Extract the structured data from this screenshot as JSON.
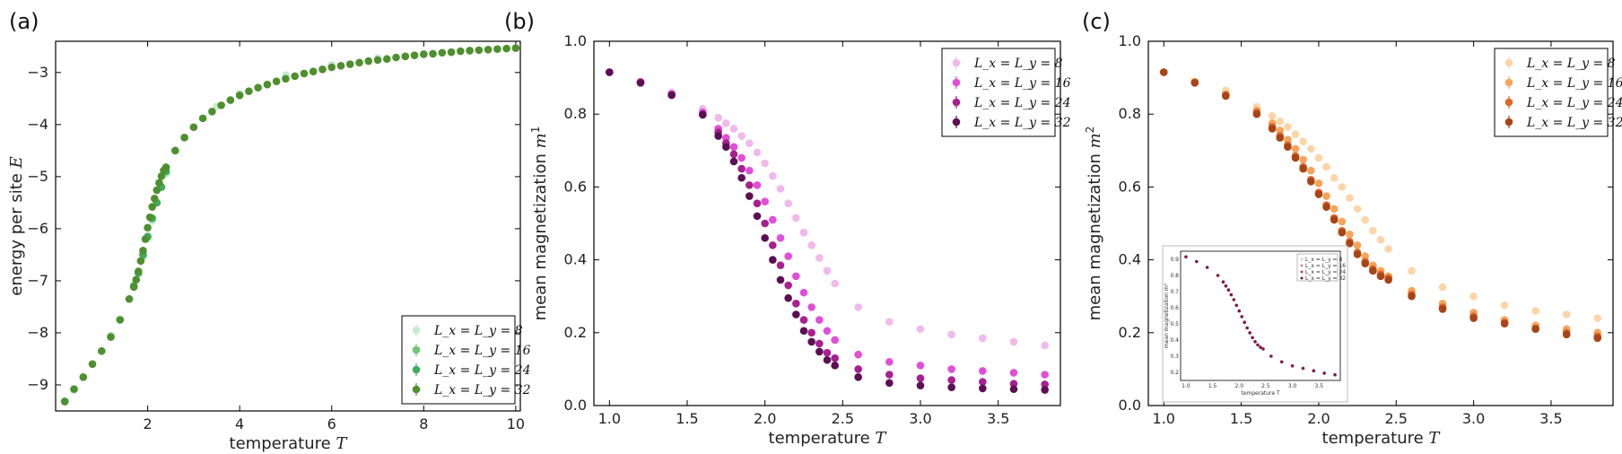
{
  "chart_data": [
    {
      "panel": "(a)",
      "type": "scatter",
      "xlabel": "temperature",
      "xlabel_var": "T",
      "ylabel": "energy per site",
      "ylabel_var": "E",
      "xlim": [
        0,
        10.1
      ],
      "ylim": [
        -9.5,
        -2.4
      ],
      "xticks": [
        2,
        4,
        6,
        8,
        10
      ],
      "yticks": [
        -9,
        -8,
        -7,
        -6,
        -5,
        -4,
        -3
      ],
      "grid": false,
      "legend_position": "bottom-right",
      "series": [
        {
          "name": "L_x = L_y = 8",
          "color": "#c7ebd0",
          "x": [
            0.2,
            0.4,
            0.6,
            0.8,
            1.0,
            1.2,
            1.4,
            1.6,
            1.7,
            1.8,
            1.9,
            2.0,
            2.1,
            2.2,
            2.3,
            2.4,
            2.6,
            2.8,
            3.0,
            3.5,
            4.0,
            5.0,
            6.0,
            7.0,
            8.0,
            9.0,
            10.0
          ],
          "y": [
            -9.3,
            -9.1,
            -8.85,
            -8.6,
            -8.35,
            -8.05,
            -7.75,
            -7.35,
            -7.1,
            -6.85,
            -6.55,
            -6.2,
            -5.85,
            -5.5,
            -5.2,
            -4.95,
            -4.5,
            -4.25,
            -4.05,
            -3.65,
            -3.4,
            -3.05,
            -2.85,
            -2.72,
            -2.64,
            -2.58,
            -2.53
          ]
        },
        {
          "name": "L_x = L_y = 16",
          "color": "#74c476",
          "x": [
            1.7,
            1.8,
            1.9,
            2.0,
            2.1,
            2.2,
            2.3,
            2.4
          ],
          "y": [
            -7.1,
            -6.85,
            -6.5,
            -6.15,
            -5.8,
            -5.5,
            -5.2,
            -4.9
          ]
        },
        {
          "name": "L_x = L_y = 24",
          "color": "#41ab5d",
          "x": [
            1.7,
            1.8,
            1.9,
            2.0,
            2.1,
            2.2,
            2.3,
            2.4
          ],
          "y": [
            -7.1,
            -6.85,
            -6.5,
            -6.15,
            -5.8,
            -5.5,
            -5.2,
            -4.9
          ]
        },
        {
          "name": "L_x = L_y = 32",
          "color": "#4e8f2e",
          "x": [
            0.2,
            0.4,
            0.6,
            0.8,
            1.0,
            1.2,
            1.4,
            1.6,
            1.7,
            1.75,
            1.8,
            1.85,
            1.9,
            1.95,
            2.0,
            2.05,
            2.1,
            2.15,
            2.2,
            2.25,
            2.3,
            2.35,
            2.4,
            2.6,
            2.8,
            3.0,
            3.2,
            3.4,
            3.6,
            3.8,
            4.0,
            4.2,
            4.4,
            4.6,
            4.8,
            5.0,
            5.2,
            5.4,
            5.6,
            5.8,
            6.0,
            6.2,
            6.4,
            6.6,
            6.8,
            7.0,
            7.2,
            7.4,
            7.6,
            7.8,
            8.0,
            8.2,
            8.4,
            8.6,
            8.8,
            9.0,
            9.2,
            9.4,
            9.6,
            9.8,
            10.0
          ],
          "y": [
            -9.32,
            -9.08,
            -8.85,
            -8.6,
            -8.35,
            -8.08,
            -7.75,
            -7.35,
            -7.12,
            -6.98,
            -6.82,
            -6.62,
            -6.42,
            -6.2,
            -5.98,
            -5.78,
            -5.58,
            -5.42,
            -5.26,
            -5.12,
            -4.99,
            -4.88,
            -4.82,
            -4.5,
            -4.25,
            -4.05,
            -3.88,
            -3.75,
            -3.63,
            -3.53,
            -3.44,
            -3.36,
            -3.29,
            -3.23,
            -3.17,
            -3.12,
            -3.07,
            -3.02,
            -2.98,
            -2.94,
            -2.9,
            -2.87,
            -2.84,
            -2.81,
            -2.78,
            -2.76,
            -2.74,
            -2.71,
            -2.69,
            -2.67,
            -2.65,
            -2.64,
            -2.62,
            -2.61,
            -2.59,
            -2.58,
            -2.57,
            -2.56,
            -2.55,
            -2.54,
            -2.53
          ]
        }
      ]
    },
    {
      "panel": "(b)",
      "type": "scatter",
      "xlabel": "temperature",
      "xlabel_var": "T",
      "ylabel": "mean magnetization",
      "ylabel_var": "m",
      "ylabel_sup": "1",
      "xlim": [
        0.9,
        3.9
      ],
      "ylim": [
        0.0,
        1.0
      ],
      "xticks": [
        1.0,
        1.5,
        2.0,
        2.5,
        3.0,
        3.5
      ],
      "yticks": [
        0.0,
        0.2,
        0.4,
        0.6,
        0.8,
        1.0
      ],
      "grid": false,
      "legend_position": "top-right",
      "series": [
        {
          "name": "L_x = L_y = 8",
          "color": "#f0b9ec",
          "x": [
            1.0,
            1.2,
            1.4,
            1.6,
            1.7,
            1.75,
            1.8,
            1.85,
            1.9,
            1.95,
            2.0,
            2.05,
            2.1,
            2.15,
            2.2,
            2.25,
            2.3,
            2.35,
            2.4,
            2.45,
            2.6,
            2.8,
            3.0,
            3.2,
            3.4,
            3.6,
            3.8
          ],
          "y": [
            0.915,
            0.89,
            0.86,
            0.815,
            0.79,
            0.775,
            0.76,
            0.74,
            0.72,
            0.695,
            0.665,
            0.63,
            0.595,
            0.555,
            0.515,
            0.475,
            0.44,
            0.405,
            0.37,
            0.335,
            0.27,
            0.23,
            0.21,
            0.195,
            0.185,
            0.175,
            0.165
          ]
        },
        {
          "name": "L_x = L_y = 16",
          "color": "#e04fd7",
          "x": [
            1.0,
            1.2,
            1.4,
            1.6,
            1.7,
            1.75,
            1.8,
            1.85,
            1.9,
            1.95,
            2.0,
            2.05,
            2.1,
            2.15,
            2.2,
            2.25,
            2.3,
            2.35,
            2.4,
            2.45,
            2.6,
            2.8,
            3.0,
            3.2,
            3.4,
            3.6,
            3.8
          ],
          "y": [
            0.915,
            0.888,
            0.855,
            0.805,
            0.76,
            0.735,
            0.71,
            0.68,
            0.645,
            0.605,
            0.56,
            0.51,
            0.46,
            0.41,
            0.355,
            0.31,
            0.27,
            0.235,
            0.205,
            0.18,
            0.14,
            0.12,
            0.11,
            0.1,
            0.095,
            0.09,
            0.085
          ]
        },
        {
          "name": "L_x = L_y = 24",
          "color": "#a8208f",
          "x": [
            1.0,
            1.2,
            1.4,
            1.6,
            1.7,
            1.75,
            1.8,
            1.85,
            1.9,
            1.95,
            2.0,
            2.05,
            2.1,
            2.15,
            2.2,
            2.25,
            2.3,
            2.35,
            2.4,
            2.45,
            2.6,
            2.8,
            3.0,
            3.2,
            3.4,
            3.6,
            3.8
          ],
          "y": [
            0.915,
            0.887,
            0.853,
            0.8,
            0.75,
            0.72,
            0.69,
            0.65,
            0.605,
            0.555,
            0.5,
            0.44,
            0.385,
            0.33,
            0.28,
            0.235,
            0.2,
            0.17,
            0.145,
            0.13,
            0.1,
            0.085,
            0.075,
            0.07,
            0.065,
            0.06,
            0.058
          ]
        },
        {
          "name": "L_x = L_y = 32",
          "color": "#5c0f55",
          "x": [
            1.0,
            1.2,
            1.4,
            1.6,
            1.7,
            1.75,
            1.8,
            1.85,
            1.9,
            1.95,
            2.0,
            2.05,
            2.1,
            2.15,
            2.2,
            2.25,
            2.3,
            2.35,
            2.4,
            2.45,
            2.6,
            2.8,
            3.0,
            3.2,
            3.4,
            3.6,
            3.8
          ],
          "y": [
            0.915,
            0.886,
            0.852,
            0.798,
            0.74,
            0.71,
            0.67,
            0.625,
            0.575,
            0.52,
            0.46,
            0.4,
            0.345,
            0.295,
            0.25,
            0.205,
            0.175,
            0.148,
            0.125,
            0.11,
            0.078,
            0.062,
            0.055,
            0.05,
            0.047,
            0.045,
            0.043
          ]
        }
      ]
    },
    {
      "panel": "(c)",
      "type": "scatter",
      "xlabel": "temperature",
      "xlabel_var": "T",
      "ylabel": "mean magnetization",
      "ylabel_var": "m",
      "ylabel_sup": "2",
      "xlim": [
        0.9,
        3.9
      ],
      "ylim": [
        0.0,
        1.0
      ],
      "xticks": [
        1.0,
        1.5,
        2.0,
        2.5,
        3.0,
        3.5
      ],
      "yticks": [
        0.0,
        0.2,
        0.4,
        0.6,
        0.8,
        1.0
      ],
      "grid": false,
      "legend_position": "top-right",
      "series": [
        {
          "name": "L_x = L_y = 8",
          "color": "#fbd5a8",
          "x": [
            1.0,
            1.2,
            1.4,
            1.6,
            1.7,
            1.75,
            1.8,
            1.85,
            1.9,
            1.95,
            2.0,
            2.05,
            2.1,
            2.15,
            2.2,
            2.25,
            2.3,
            2.35,
            2.4,
            2.45,
            2.6,
            2.8,
            3.0,
            3.2,
            3.4,
            3.6,
            3.8
          ],
          "y": [
            0.915,
            0.89,
            0.865,
            0.82,
            0.795,
            0.78,
            0.765,
            0.745,
            0.725,
            0.705,
            0.68,
            0.655,
            0.625,
            0.6,
            0.57,
            0.54,
            0.51,
            0.48,
            0.455,
            0.43,
            0.37,
            0.325,
            0.3,
            0.275,
            0.26,
            0.25,
            0.24
          ]
        },
        {
          "name": "L_x = L_y = 16",
          "color": "#f5a55b",
          "x": [
            1.0,
            1.2,
            1.4,
            1.6,
            1.7,
            1.75,
            1.8,
            1.85,
            1.9,
            1.95,
            2.0,
            2.05,
            2.1,
            2.15,
            2.2,
            2.25,
            2.3,
            2.35,
            2.4,
            2.45,
            2.6,
            2.8,
            3.0,
            3.2,
            3.4,
            3.6,
            3.8
          ],
          "y": [
            0.915,
            0.888,
            0.855,
            0.81,
            0.775,
            0.755,
            0.73,
            0.705,
            0.675,
            0.645,
            0.61,
            0.575,
            0.54,
            0.505,
            0.47,
            0.44,
            0.41,
            0.385,
            0.37,
            0.355,
            0.315,
            0.28,
            0.255,
            0.235,
            0.22,
            0.21,
            0.2
          ]
        },
        {
          "name": "L_x = L_y = 24",
          "color": "#e0672a",
          "x": [
            1.0,
            1.2,
            1.4,
            1.6,
            1.7,
            1.75,
            1.8,
            1.85,
            1.9,
            1.95,
            2.0,
            2.05,
            2.1,
            2.15,
            2.2,
            2.25,
            2.3,
            2.35,
            2.4,
            2.45,
            2.6,
            2.8,
            3.0,
            3.2,
            3.4,
            3.6,
            3.8
          ],
          "y": [
            0.915,
            0.887,
            0.852,
            0.805,
            0.765,
            0.74,
            0.715,
            0.685,
            0.655,
            0.62,
            0.585,
            0.55,
            0.515,
            0.48,
            0.45,
            0.42,
            0.395,
            0.375,
            0.36,
            0.35,
            0.305,
            0.27,
            0.245,
            0.228,
            0.212,
            0.2,
            0.19
          ]
        },
        {
          "name": "L_x = L_y = 32",
          "color": "#a84416",
          "x": [
            1.0,
            1.2,
            1.4,
            1.6,
            1.7,
            1.75,
            1.8,
            1.85,
            1.9,
            1.95,
            2.0,
            2.05,
            2.1,
            2.15,
            2.2,
            2.25,
            2.3,
            2.35,
            2.4,
            2.45,
            2.6,
            2.8,
            3.0,
            3.2,
            3.4,
            3.6,
            3.8
          ],
          "y": [
            0.915,
            0.886,
            0.85,
            0.8,
            0.76,
            0.735,
            0.71,
            0.68,
            0.65,
            0.615,
            0.58,
            0.545,
            0.51,
            0.475,
            0.445,
            0.415,
            0.39,
            0.37,
            0.355,
            0.345,
            0.3,
            0.265,
            0.24,
            0.225,
            0.21,
            0.195,
            0.185
          ]
        }
      ],
      "inset": {
        "xlabel": "temperature T",
        "ylabel": "mean magnetization m²",
        "xticks": [
          1.0,
          1.5,
          2.0,
          2.5,
          3.0,
          3.5
        ],
        "yticks": [
          0.2,
          0.3,
          0.4,
          0.5,
          0.6,
          0.7,
          0.8,
          0.9
        ],
        "xlim": [
          0.9,
          3.9
        ],
        "ylim": [
          0.15,
          0.95
        ],
        "legend": [
          "L_x = L_y = 8",
          "L_x = L_y = 16",
          "L_x = L_y = 24",
          "L_x = L_y = 32"
        ],
        "colors": [
          "#efc3d0",
          "#d98aa0",
          "#b04a62",
          "#7a1d38"
        ],
        "x": [
          1.0,
          1.2,
          1.4,
          1.6,
          1.7,
          1.75,
          1.8,
          1.85,
          1.9,
          1.95,
          2.0,
          2.05,
          2.1,
          2.15,
          2.2,
          2.25,
          2.3,
          2.35,
          2.4,
          2.45,
          2.6,
          2.8,
          3.0,
          3.2,
          3.4,
          3.6,
          3.8
        ],
        "y": [
          0.915,
          0.886,
          0.85,
          0.8,
          0.76,
          0.735,
          0.71,
          0.68,
          0.65,
          0.615,
          0.58,
          0.545,
          0.51,
          0.475,
          0.445,
          0.415,
          0.39,
          0.37,
          0.355,
          0.345,
          0.3,
          0.265,
          0.24,
          0.225,
          0.21,
          0.195,
          0.185
        ]
      }
    }
  ]
}
